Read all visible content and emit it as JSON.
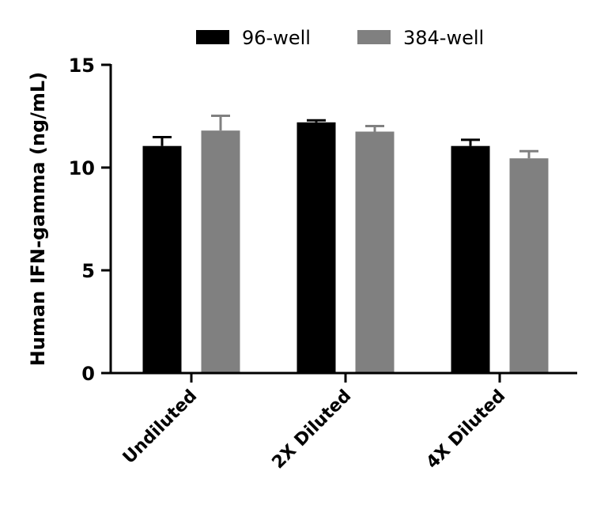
{
  "chart_data": {
    "type": "bar",
    "title": "",
    "xlabel": "",
    "ylabel": "Human IFN-gamma (ng/mL)",
    "ylim": [
      0,
      15
    ],
    "yticks": [
      0,
      5,
      10,
      15
    ],
    "categories": [
      "Undiluted",
      "2X Diluted",
      "4X Diluted"
    ],
    "legend_position": "top",
    "grid": false,
    "series": [
      {
        "name": "96-well",
        "color": "#000000",
        "values": [
          11.05,
          12.2,
          11.05
        ],
        "error": [
          0.43,
          0.1,
          0.3
        ]
      },
      {
        "name": "384-well",
        "color": "#808080",
        "values": [
          11.8,
          11.75,
          10.45
        ],
        "error": [
          0.72,
          0.27,
          0.35
        ]
      }
    ]
  }
}
